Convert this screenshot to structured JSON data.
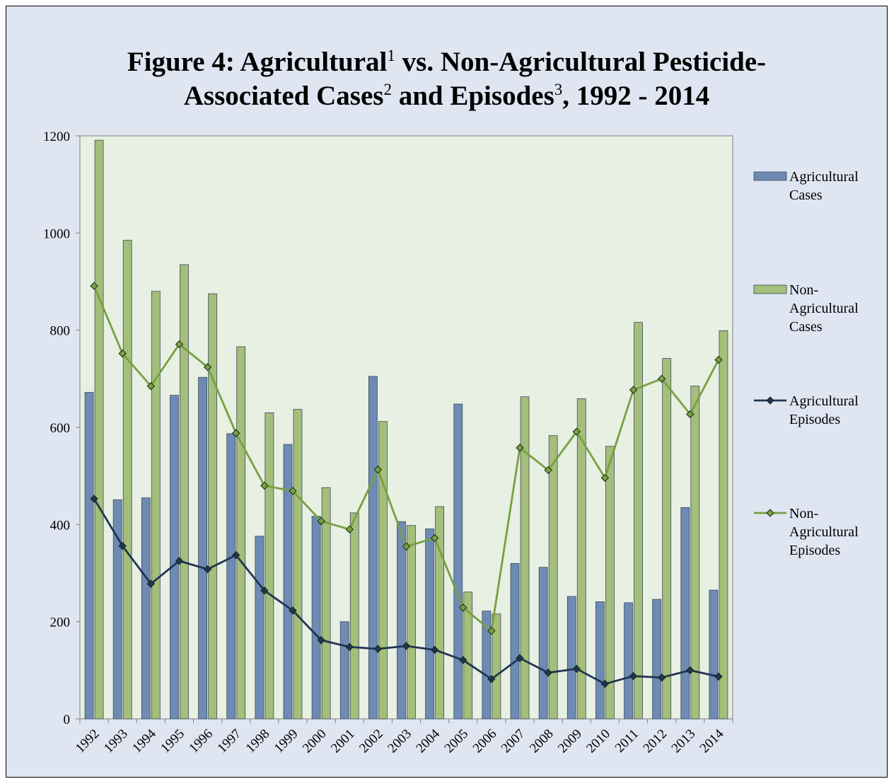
{
  "title": {
    "line1_a": "Figure 4: Agricultural",
    "sup1": "1",
    "line1_b": " vs. Non-Agricultural Pesticide-",
    "line2_a": "Associated Cases",
    "sup2": "2",
    "line2_b": " and Episodes",
    "sup3": "3",
    "line2_c": ", 1992 - 2014"
  },
  "colors": {
    "background": "#dfe6f1",
    "plot_area": "#e8efe3",
    "agricultural_cases": "#6e8bb4",
    "non_agricultural_cases": "#a4be7b",
    "agricultural_episodes": "#1f3553",
    "non_agricultural_episodes": "#77a042"
  },
  "chart_data": {
    "type": "bar",
    "categories": [
      "1992",
      "1993",
      "1994",
      "1995",
      "1996",
      "1997",
      "1998",
      "1999",
      "2000",
      "2001",
      "2002",
      "2003",
      "2004",
      "2005",
      "2006",
      "2007",
      "2008",
      "2009",
      "2010",
      "2011",
      "2012",
      "2013",
      "2014"
    ],
    "ylim": [
      0,
      1200
    ],
    "yticks": [
      0,
      200,
      400,
      600,
      800,
      1000,
      1200
    ],
    "grid": false,
    "legend_position": "right",
    "series": [
      {
        "name": "Agricultural Cases",
        "legend_lines": [
          "Agricultural",
          "Cases"
        ],
        "kind": "bar",
        "values": [
          672,
          451,
          455,
          666,
          703,
          587,
          376,
          565,
          417,
          200,
          705,
          406,
          391,
          648,
          222,
          320,
          312,
          252,
          241,
          239,
          246,
          435,
          265
        ]
      },
      {
        "name": "Non-Agricultural Cases",
        "legend_lines": [
          "Non-",
          "Agricultural",
          "Cases"
        ],
        "kind": "bar",
        "values": [
          1191,
          985,
          880,
          935,
          875,
          766,
          630,
          637,
          476,
          424,
          612,
          398,
          437,
          261,
          216,
          663,
          583,
          659,
          561,
          816,
          742,
          685,
          799
        ]
      },
      {
        "name": "Agricultural Episodes",
        "legend_lines": [
          "Agricultural",
          "Episodes"
        ],
        "kind": "line",
        "values": [
          453,
          356,
          278,
          325,
          308,
          337,
          264,
          223,
          162,
          148,
          144,
          150,
          142,
          121,
          82,
          125,
          95,
          103,
          72,
          88,
          85,
          100,
          87
        ]
      },
      {
        "name": "Non-Agricultural Episodes",
        "legend_lines": [
          "Non-",
          "Agricultural",
          "Episodes"
        ],
        "kind": "line",
        "values": [
          891,
          752,
          685,
          771,
          724,
          588,
          480,
          469,
          407,
          390,
          513,
          355,
          372,
          229,
          181,
          558,
          512,
          591,
          496,
          677,
          700,
          627,
          739
        ]
      }
    ]
  }
}
